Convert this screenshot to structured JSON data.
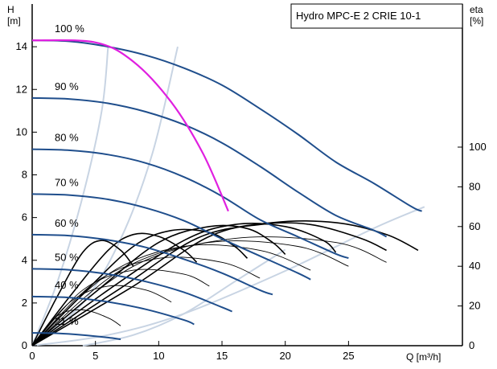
{
  "chart_data": {
    "type": "line",
    "title": "Hydro MPC-E 2 CRIE 10-1",
    "left_axis": {
      "label": "H",
      "unit": "[m]",
      "range": [
        0,
        16
      ],
      "ticks": [
        "0",
        "2",
        "4",
        "6",
        "8",
        "10",
        "12",
        "14"
      ]
    },
    "right_axis": {
      "label": "eta",
      "unit": "[%]",
      "range": [
        0,
        100
      ],
      "ticks": [
        "0",
        "20",
        "40",
        "60",
        "80",
        "100"
      ]
    },
    "x_axis": {
      "label": "Q [m³/h]",
      "range": [
        0,
        34
      ],
      "ticks": [
        "0",
        "5",
        "10",
        "15",
        "20",
        "25"
      ]
    },
    "grid": false,
    "colors": {
      "pump_curve": "#1f4e8c",
      "efficiency_curve": "#000000",
      "efficiency_iso": "#c8d4e3",
      "max_curve": "#e020e0"
    },
    "speed_labels": [
      "100 %",
      "90 %",
      "80 %",
      "70 %",
      "60 %",
      "50 %",
      "40 %",
      "21 %"
    ],
    "pump_curves": [
      {
        "label": "100 %",
        "h0": 14.3,
        "segments": [
          {
            "x": [
              0,
              3,
              6,
              9,
              12,
              15,
              18,
              21,
              24,
              27,
              30,
              30.8
            ],
            "y": [
              14.3,
              14.25,
              14.0,
              13.6,
              13.0,
              12.2,
              11.1,
              9.9,
              8.6,
              7.6,
              6.5,
              6.3
            ]
          }
        ]
      },
      {
        "label": "90 %",
        "h0": 11.6,
        "segments": [
          {
            "x": [
              0,
              3,
              6,
              9,
              12,
              15,
              18,
              21,
              24,
              27,
              28.0
            ],
            "y": [
              11.6,
              11.55,
              11.35,
              10.95,
              10.35,
              9.5,
              8.4,
              7.2,
              6.1,
              5.4,
              5.1
            ]
          }
        ]
      },
      {
        "label": "80 %",
        "h0": 9.2,
        "segments": [
          {
            "x": [
              0,
              3,
              6,
              9,
              12,
              15,
              18,
              21,
              24,
              25.0
            ],
            "y": [
              9.2,
              9.15,
              8.95,
              8.55,
              7.9,
              7.0,
              5.9,
              5.1,
              4.3,
              4.1
            ]
          }
        ]
      },
      {
        "label": "70 %",
        "h0": 7.1,
        "segments": [
          {
            "x": [
              0,
              3,
              6,
              9,
              12,
              15,
              18,
              21,
              22.0
            ],
            "y": [
              7.1,
              7.05,
              6.85,
              6.45,
              5.85,
              5.0,
              4.2,
              3.4,
              3.1
            ]
          }
        ]
      },
      {
        "label": "60 %",
        "h0": 5.2,
        "segments": [
          {
            "x": [
              0,
              3,
              6,
              9,
              12,
              15,
              18,
              19.0
            ],
            "y": [
              5.2,
              5.15,
              4.95,
              4.6,
              4.05,
              3.4,
              2.6,
              2.4
            ]
          }
        ]
      },
      {
        "label": "50 %",
        "h0": 3.6,
        "segments": [
          {
            "x": [
              0,
              3,
              6,
              9,
              12,
              15,
              15.8
            ],
            "y": [
              3.6,
              3.55,
              3.35,
              3.0,
              2.5,
              1.8,
              1.6
            ]
          }
        ]
      },
      {
        "label": "40 %",
        "h0": 2.3,
        "segments": [
          {
            "x": [
              0,
              3,
              6,
              9,
              12,
              12.8
            ],
            "y": [
              2.3,
              2.25,
              2.05,
              1.7,
              1.2,
              1.0
            ]
          }
        ]
      },
      {
        "label": "21 %",
        "h0": 0.6,
        "segments": [
          {
            "x": [
              0,
              2,
              4,
              6,
              7.0
            ],
            "y": [
              0.6,
              0.58,
              0.5,
              0.38,
              0.3
            ]
          }
        ]
      }
    ],
    "max_curve": {
      "x": [
        0,
        5,
        8,
        11,
        13.5,
        15.5
      ],
      "y": [
        14.3,
        14.2,
        13.3,
        11.4,
        9.0,
        6.3
      ]
    },
    "efficiency_curves": [
      {
        "x": [
          0,
          2,
          4,
          5.5,
          7,
          8
        ],
        "y": [
          0,
          25,
          47,
          53,
          48,
          40
        ]
      },
      {
        "x": [
          0,
          3,
          6,
          8,
          10,
          12,
          13
        ],
        "y": [
          0,
          25,
          48,
          56,
          55,
          48,
          42
        ]
      },
      {
        "x": [
          0,
          4,
          8,
          11,
          14,
          16,
          17
        ],
        "y": [
          0,
          26,
          50,
          58,
          57,
          50,
          44
        ]
      },
      {
        "x": [
          0,
          5,
          10,
          14,
          17,
          19,
          20
        ],
        "y": [
          0,
          27,
          52,
          60,
          59,
          52,
          46
        ]
      },
      {
        "x": [
          0,
          6,
          12,
          16,
          20,
          23,
          24
        ],
        "y": [
          0,
          28,
          53,
          61,
          60,
          53,
          47
        ]
      },
      {
        "x": [
          0,
          7,
          13,
          18,
          22,
          26,
          28
        ],
        "y": [
          0,
          29,
          54,
          61,
          61,
          54,
          48
        ]
      },
      {
        "x": [
          0,
          8,
          14,
          19,
          24,
          28,
          30.5
        ],
        "y": [
          0,
          30,
          55,
          62,
          62,
          56,
          48
        ]
      },
      {
        "x": [
          0,
          2,
          4,
          6,
          7
        ],
        "y": [
          0,
          15,
          18,
          14,
          10
        ]
      },
      {
        "x": [
          0,
          3,
          6,
          9,
          11
        ],
        "y": [
          0,
          22,
          30,
          28,
          22
        ]
      },
      {
        "x": [
          0,
          4,
          8,
          12,
          14
        ],
        "y": [
          0,
          28,
          38,
          36,
          30
        ]
      },
      {
        "x": [
          0,
          5,
          10,
          15,
          18
        ],
        "y": [
          0,
          32,
          44,
          42,
          34
        ]
      },
      {
        "x": [
          0,
          6,
          12,
          18,
          22
        ],
        "y": [
          0,
          36,
          50,
          48,
          38
        ]
      },
      {
        "x": [
          0,
          7,
          14,
          21,
          25
        ],
        "y": [
          0,
          38,
          52,
          50,
          40
        ]
      },
      {
        "x": [
          0,
          8,
          16,
          24,
          28
        ],
        "y": [
          0,
          40,
          54,
          52,
          42
        ]
      }
    ],
    "iso_efficiency_curves": [
      {
        "x": [
          0,
          2,
          4,
          5.5,
          6
        ],
        "y": [
          0,
          3,
          7,
          11,
          14
        ]
      },
      {
        "x": [
          0,
          4,
          7,
          9.5,
          11.5
        ],
        "y": [
          0,
          2,
          5,
          9,
          14
        ]
      },
      {
        "x": [
          0,
          6,
          12,
          20,
          27,
          31
        ],
        "y": [
          0,
          0.5,
          1.5,
          3.5,
          5.5,
          6.5
        ]
      },
      {
        "x": [
          4,
          8,
          12,
          16,
          20
        ],
        "y": [
          0,
          0.5,
          1.5,
          3,
          4.5
        ]
      }
    ]
  }
}
